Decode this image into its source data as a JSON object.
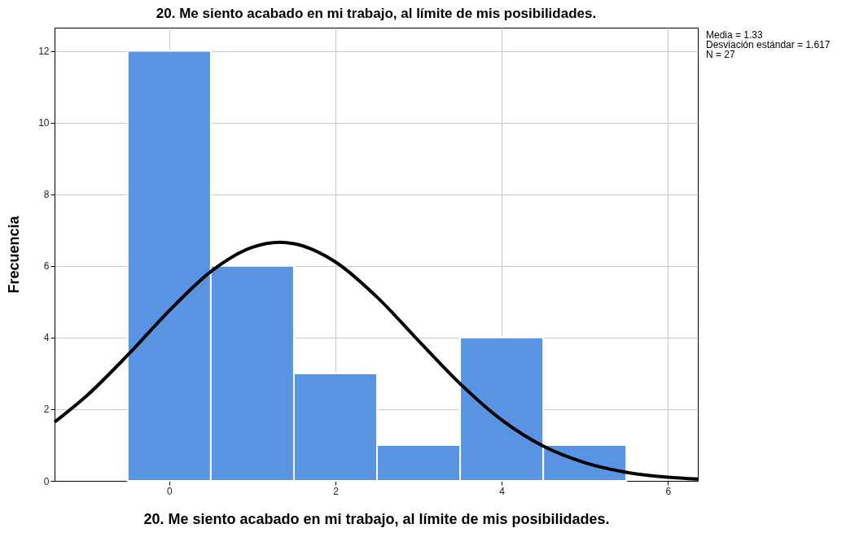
{
  "chart_data": {
    "type": "histogram",
    "title": "20. Me siento acabado en mi trabajo, al límite de mis posibilidades.",
    "xlabel": "20. Me siento acabado en mi trabajo, al límite de mis posibilidades.",
    "ylabel": "Frecuencia",
    "bins": [
      -0.5,
      0.5,
      1.5,
      2.5,
      3.5,
      4.5,
      5.5
    ],
    "values": [
      12,
      6,
      3,
      1,
      4,
      1
    ],
    "color": "#5994e3",
    "series": [
      {
        "type": "line",
        "color": "#000000",
        "x": [
          -1.38,
          -1,
          -0.5,
          0,
          0.5,
          1,
          1.33,
          1.5,
          2,
          2.5,
          3,
          3.5,
          4,
          4.5,
          5,
          5.5,
          6,
          6.36
        ],
        "values": [
          1.64,
          2.36,
          3.51,
          4.75,
          5.84,
          6.52,
          6.66,
          6.62,
          6.11,
          5.13,
          3.91,
          2.71,
          1.7,
          0.97,
          0.51,
          0.24,
          0.1,
          0.05
        ]
      }
    ],
    "xlim": [
      -1.38,
      6.36
    ],
    "xticks": [
      0,
      2,
      4,
      6
    ],
    "ylim": [
      0,
      12.65
    ],
    "yticks": [
      0,
      2,
      4,
      6,
      8,
      10,
      12
    ],
    "grid": true,
    "annotations": [
      "Media = 1.33",
      "Desviación estándar = 1.617",
      "N = 27"
    ]
  }
}
